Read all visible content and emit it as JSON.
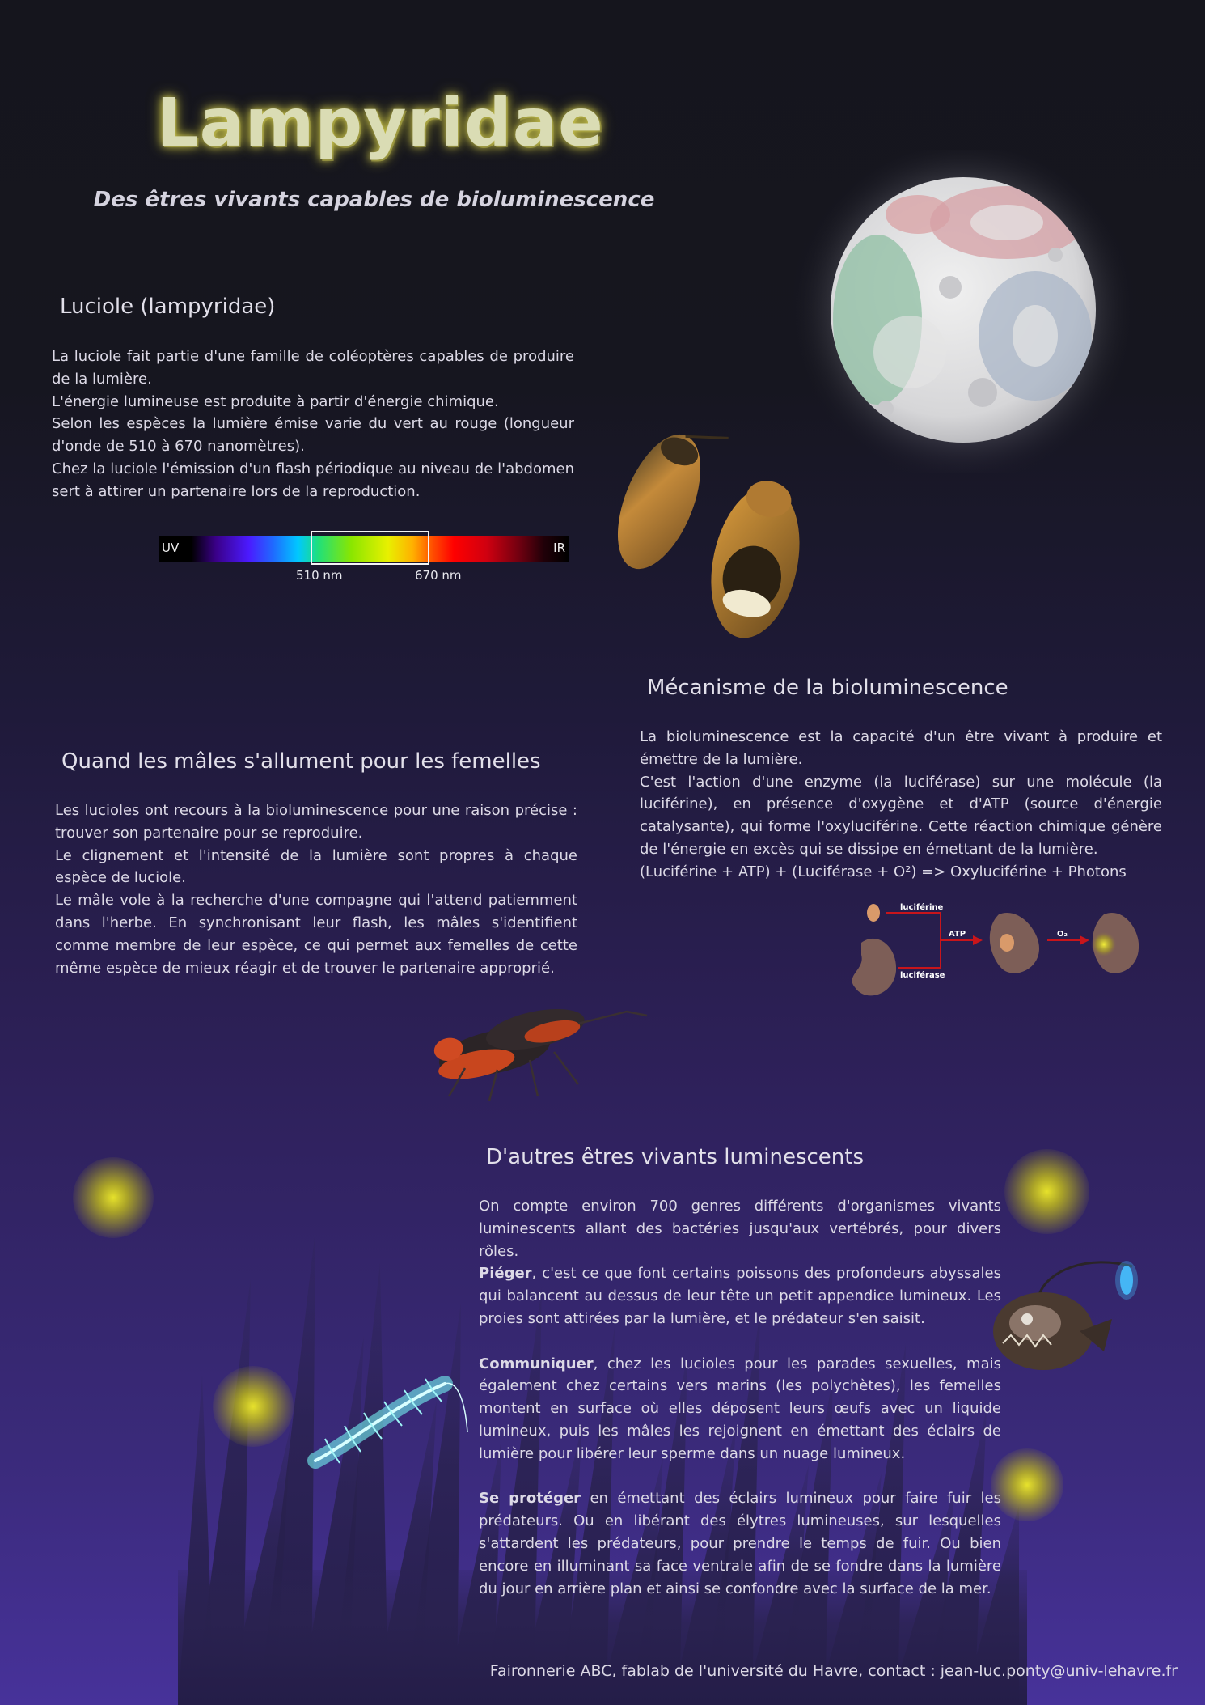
{
  "header": {
    "title": "Lampyridae",
    "subtitle": "Des êtres vivants capables de bioluminescence"
  },
  "section_luciole": {
    "heading": "Luciole (lampyridae)",
    "lines": [
      "La luciole fait partie d'une famille de coléoptères capables de produire de la lumière.",
      "L'énergie lumineuse est produite à partir d'énergie chimique.",
      "Selon les espèces la lumière émise varie du vert au rouge (longueur d'onde  de 510 à 670 nanomètres).",
      "Chez la luciole l'émission d'un flash périodique au niveau de l'abdomen sert à attirer un partenaire lors de la reproduction."
    ]
  },
  "spectrum": {
    "left_label": "UV",
    "right_label": "IR",
    "low_label": "510 nm",
    "high_label": "670 nm"
  },
  "section_mecanisme": {
    "heading": "Mécanisme de la bioluminescence",
    "lines": [
      "La bioluminescence est la capacité d'un être vivant à produire et émettre de la lumière.",
      "C'est l'action d'une enzyme (la luciférase) sur une molécule (la luciférine), en présence d'oxygène et d'ATP (source d'énergie catalysante), qui forme l'oxyluciférine. Cette réaction chimique génère de l'énergie en excès qui se dissipe en émettant de la lumière.",
      " (Luciférine + ATP) + (Luciférase + O²) => Oxyluciférine + Photons"
    ]
  },
  "diagram": {
    "luciferin_label": "luciférine",
    "luciferase_label": "luciférase",
    "atp_label": "ATP",
    "o2_label": "O₂"
  },
  "section_males": {
    "heading": "Quand les mâles s'allument pour les femelles",
    "lines": [
      "Les lucioles ont recours à la bioluminescence pour une raison précise : trouver son partenaire pour se reproduire.",
      "Le clignement et l'intensité de la lumière sont propres à chaque espèce de luciole.",
      "Le mâle vole à la recherche d'une compagne qui l'attend patiemment dans l'herbe. En synchronisant leur flash, les mâles s'identifient comme membre de leur espèce, ce qui permet aux femelles de cette même espèce de mieux réagir et de trouver le partenaire approprié."
    ]
  },
  "section_autres": {
    "heading": "D'autres êtres vivants luminescents",
    "intro": "On compte environ 700 genres différents d'organismes vivants luminescents allant des bactéries jusqu'aux vertébrés, pour divers rôles.",
    "pieger_term": "Piéger",
    "pieger_text": ", c'est ce que font certains poissons des profondeurs abyssales qui balancent au dessus de leur tête un petit appendice lumineux. Les proies sont attirées par la lumière, et le prédateur s'en saisit.",
    "communiquer_term": "Communiquer",
    "communiquer_text": ", chez les lucioles pour les parades sexuelles, mais également chez certains vers marins (les polychètes), les femelles montent en surface où elles déposent leurs œufs avec un liquide lumineux, puis les mâles les rejoignent en émettant des éclairs de lumière pour libérer leur sperme dans un nuage lumineux.",
    "proteger_term": "Se protéger",
    "proteger_text": " en émettant des éclairs lumineux pour faire fuir les prédateurs. Ou en libérant des élytres lumineuses, sur lesquelles s'attardent les prédateurs, pour prendre le temps de fuir. Ou bien encore en illuminant sa face ventrale afin de se fondre dans la lumière du jour en arrière plan et ainsi se confondre avec la surface de la mer."
  },
  "footer": {
    "text": "Faironnerie ABC, fablab de l'université du Havre, contact : jean-luc.ponty@univ-lehavre.fr"
  },
  "colors": {
    "title_glow": "#c8c250",
    "glow_yellow": "#f0ec28",
    "arrow_red": "#c8151b",
    "shape_brown": "#7d5e57"
  }
}
